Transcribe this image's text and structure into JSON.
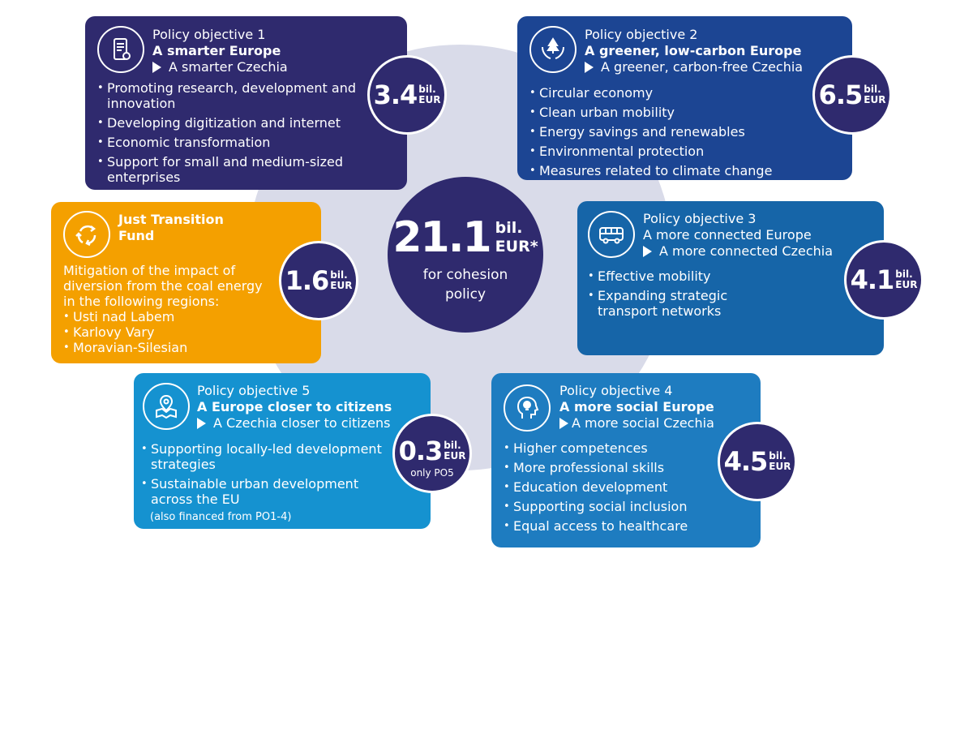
{
  "center": {
    "amount": "21.1",
    "unit_line1": "bil.",
    "unit_line2": "EUR*",
    "subtitle": "for cohesion policy"
  },
  "objectives": {
    "po1": {
      "title": "Policy objective 1",
      "subtitle": "A smarter Europe",
      "national": "A smarter Czechia",
      "items": [
        "Promoting research, development and innovation",
        "Developing digitization and internet",
        "Economic transformation",
        "Support for small and medium-sized enterprises"
      ],
      "amount": "3.4",
      "unit1": "bil.",
      "unit2": "EUR",
      "icon": "smartphone-icon"
    },
    "po2": {
      "title": "Policy objective 2",
      "subtitle": "A greener, low-carbon Europe",
      "national": "A greener, carbon-free Czechia",
      "items": [
        "Circular economy",
        "Clean urban mobility",
        "Energy savings and renewables",
        "Environmental protection",
        "Measures related to climate change"
      ],
      "amount": "6.5",
      "unit1": "bil.",
      "unit2": "EUR",
      "icon": "tree-in-hands-icon"
    },
    "po3": {
      "title": "Policy objective 3",
      "subtitle": "A more connected Europe",
      "national": "A more connected Czechia",
      "items": [
        "Effective mobility",
        "Expanding strategic transport networks"
      ],
      "amount": "4.1",
      "unit1": "bil.",
      "unit2": "EUR",
      "icon": "bus-icon"
    },
    "po4": {
      "title": "Policy objective 4",
      "subtitle": "A more social Europe",
      "national": "A more social Czechia",
      "items": [
        "Higher competences",
        "More professional skills",
        "Education development",
        "Supporting social inclusion",
        "Equal access to healthcare"
      ],
      "amount": "4.5",
      "unit1": "bil.",
      "unit2": "EUR",
      "icon": "head-lightbulb-icon"
    },
    "po5": {
      "title": "Policy objective 5",
      "subtitle": "A Europe closer to citizens",
      "national": "A Czechia closer to citizens",
      "items": [
        "Supporting locally-led development strategies",
        "Sustainable urban development across the EU"
      ],
      "note": "(also financed from PO1-4)",
      "amount": "0.3",
      "unit1": "bil.",
      "unit2": "EUR",
      "extra": "only PO5",
      "icon": "map-pin-icon"
    },
    "jtf": {
      "title": "Just Transition Fund",
      "intro": "Mitigation of the impact of diversion from the coal energy in the following regions:",
      "items": [
        "Usti nad Labem",
        "Karlovy Vary",
        "Moravian-Silesian"
      ],
      "amount": "1.6",
      "unit1": "bil.",
      "unit2": "EUR",
      "icon": "recycle-arrows-icon"
    }
  },
  "colors": {
    "navy": "#2f2a6e",
    "po2": "#1c4593",
    "po3": "#1665a8",
    "po4": "#1e7cc0",
    "po5": "#1592d0",
    "jtf": "#f4a000",
    "ring": "#d9dbe9"
  }
}
